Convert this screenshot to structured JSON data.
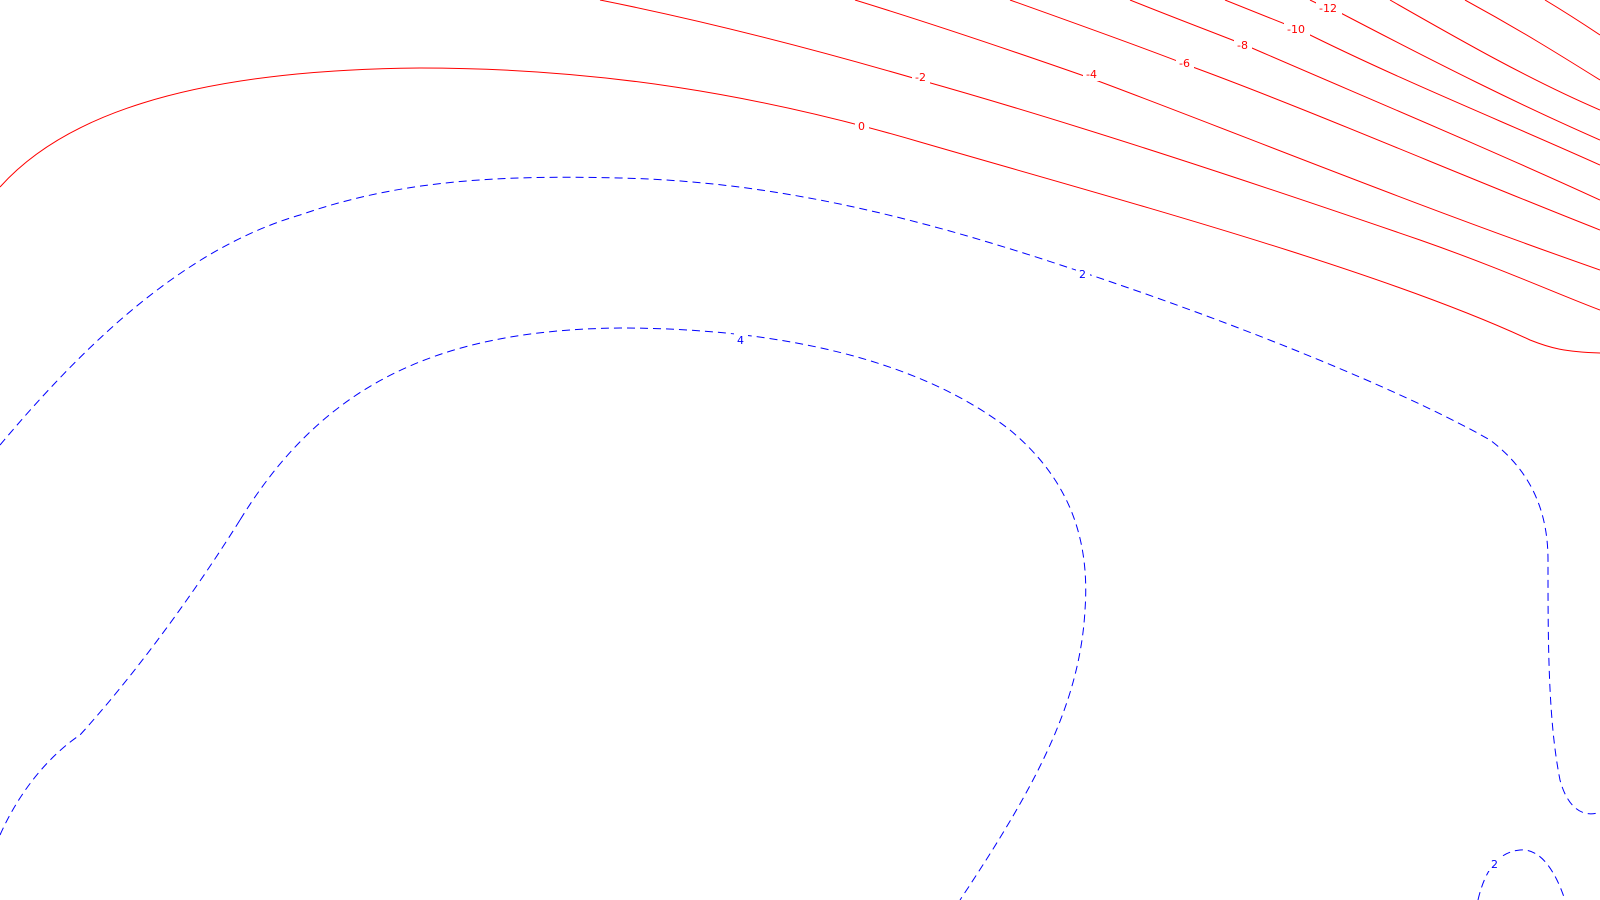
{
  "map": {
    "background": "#ffffff",
    "colors": {
      "positive": "#0000ff",
      "negative": "#ff0000"
    },
    "contour_labels": {
      "red": [
        "-2",
        "0",
        "-4",
        "-6",
        "-8",
        "-10",
        "-12"
      ],
      "blue": [
        "2",
        "4",
        "2"
      ]
    }
  }
}
